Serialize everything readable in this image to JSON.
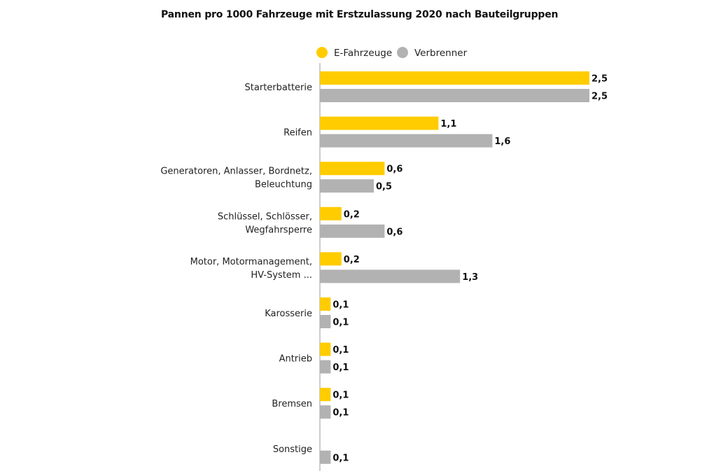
{
  "chart_data": {
    "type": "bar",
    "orientation": "horizontal",
    "title": "Pannen pro 1000 Fahrzeuge mit Erstzulassung 2020 nach Bauteilgruppen",
    "categories": [
      [
        "Starterbatterie"
      ],
      [
        "Reifen"
      ],
      [
        "Generatoren, Anlasser, Bordnetz,",
        "Beleuchtung"
      ],
      [
        "Schlüssel, Schlösser,",
        "Wegfahrsperre"
      ],
      [
        "Motor, Motormanagement,",
        "HV-System ..."
      ],
      [
        "Karosserie"
      ],
      [
        "Antrieb"
      ],
      [
        "Bremsen"
      ],
      [
        "Sonstige"
      ]
    ],
    "series": [
      {
        "name": "E-Fahrzeuge",
        "color": "#ffcc00",
        "values": [
          2.5,
          1.1,
          0.6,
          0.2,
          0.2,
          0.1,
          0.1,
          0.1,
          null
        ],
        "labels": [
          "2,5",
          "1,1",
          "0,6",
          "0,2",
          "0,2",
          "0,1",
          "0,1",
          "0,1",
          null
        ]
      },
      {
        "name": "Verbrenner",
        "color": "#b2b2b2",
        "values": [
          2.5,
          1.6,
          0.5,
          0.6,
          1.3,
          0.1,
          0.1,
          0.1,
          0.1
        ],
        "labels": [
          "2,5",
          "1,6",
          "0,5",
          "0,6",
          "1,3",
          "0,1",
          "0,1",
          "0,1",
          "0,1"
        ]
      }
    ],
    "xlim": [
      0,
      2.5
    ],
    "grid": false,
    "legend": "top",
    "axis_color": "#bbbbbb"
  }
}
